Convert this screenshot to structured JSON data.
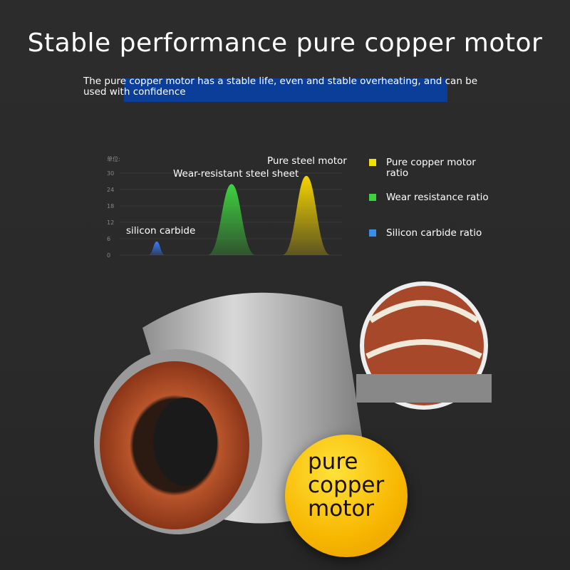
{
  "header": {
    "title": "Stable performance pure copper motor",
    "subtitle": "The pure copper motor has a stable life, even and stable overheating, and can be used with confidence"
  },
  "chart_data": {
    "type": "area",
    "unit_label": "单位:",
    "ylim": [
      0,
      30
    ],
    "yticks": [
      "0",
      "6",
      "12",
      "18",
      "24",
      "30"
    ],
    "grid": true,
    "series": [
      {
        "name": "silicon carbide",
        "value": 5,
        "color": "#3a7bff"
      },
      {
        "name": "Wear-resistant steel sheet",
        "value": 26,
        "color": "#3fd13f"
      },
      {
        "name": "Pure steel motor",
        "value": 29,
        "color": "#f5d400"
      }
    ],
    "legend": [
      {
        "label": "Pure copper motor ratio",
        "color": "#f2e000"
      },
      {
        "label": "Wear resistance ratio",
        "color": "#3ed33e"
      },
      {
        "label": "Silicon carbide ratio",
        "color": "#3a8ee8"
      }
    ],
    "legend_position": "right"
  },
  "badge": {
    "text": "pure copper motor",
    "lines": [
      "pure",
      "copper",
      "motor"
    ]
  },
  "colors": {
    "background": "#2b2b2b",
    "highlight": "#0b3e98",
    "badge": "#f7b600"
  }
}
